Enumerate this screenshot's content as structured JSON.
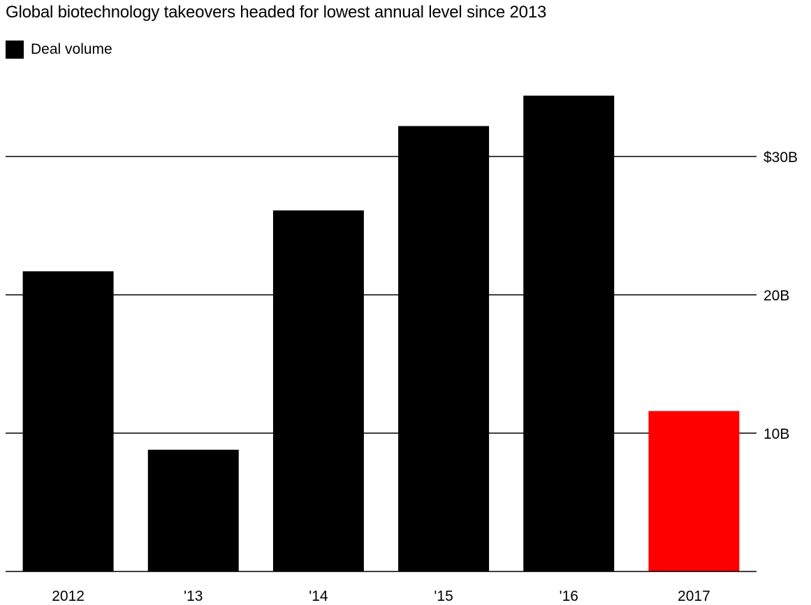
{
  "chart_data": {
    "type": "bar",
    "title": "Global biotechnology takeovers headed for lowest annual level since 2013",
    "legend": [
      {
        "name": "Deal volume",
        "color": "#000000"
      }
    ],
    "categories": [
      "2012",
      "'13",
      "'14",
      "'15",
      "'16",
      "2017"
    ],
    "series": [
      {
        "name": "Deal volume",
        "values": [
          21.7,
          8.8,
          26.1,
          32.2,
          34.4,
          11.6
        ]
      }
    ],
    "bar_colors": [
      "#000000",
      "#000000",
      "#000000",
      "#000000",
      "#000000",
      "#ff0000"
    ],
    "y_ticks": [
      10,
      20,
      30
    ],
    "y_tick_labels": [
      "10B",
      "20B",
      "$30B"
    ],
    "ylim": [
      0,
      36
    ],
    "grid": true,
    "y_axis_side": "right",
    "legend_position": "top-left"
  }
}
